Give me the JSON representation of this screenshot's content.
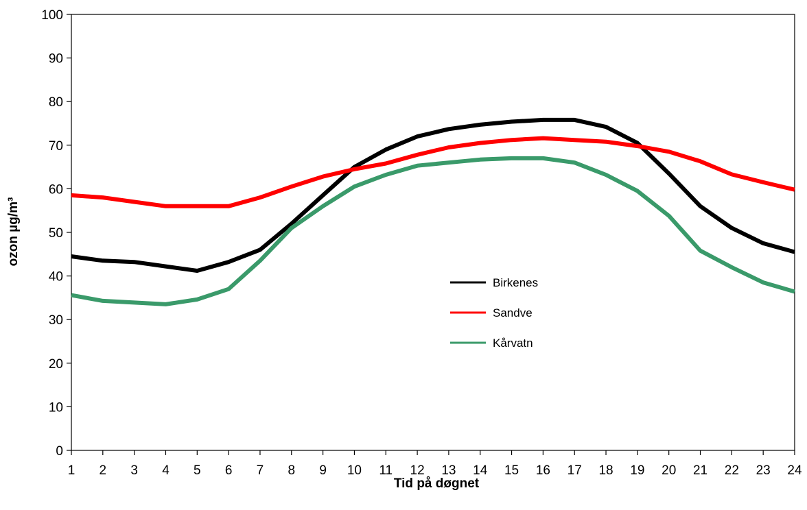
{
  "chart_data": {
    "type": "line",
    "title": "",
    "xlabel": "Tid på døgnet",
    "ylabel": "ozon µg/m³",
    "x": [
      1,
      2,
      3,
      4,
      5,
      6,
      7,
      8,
      9,
      10,
      11,
      12,
      13,
      14,
      15,
      16,
      17,
      18,
      19,
      20,
      21,
      22,
      23,
      24
    ],
    "xlim": [
      1,
      24
    ],
    "ylim": [
      0,
      100
    ],
    "yticks": [
      0,
      10,
      20,
      30,
      40,
      50,
      60,
      70,
      80,
      90,
      100
    ],
    "grid": false,
    "legend_position": "center-right",
    "series": [
      {
        "name": "Birkenes",
        "color": "#000000",
        "values": [
          44.5,
          43.5,
          43.2,
          42.2,
          41.2,
          43.2,
          46.0,
          52.0,
          58.5,
          65.0,
          69.0,
          72.0,
          73.7,
          74.7,
          75.4,
          75.8,
          75.8,
          74.2,
          70.5,
          63.5,
          56.0,
          51.0,
          47.5,
          45.5
        ]
      },
      {
        "name": "Sandve",
        "color": "#ff0000",
        "values": [
          58.5,
          58.0,
          57.0,
          56.0,
          56.0,
          56.0,
          58.0,
          60.5,
          62.8,
          64.5,
          65.8,
          67.8,
          69.5,
          70.5,
          71.2,
          71.6,
          71.2,
          70.8,
          69.8,
          68.5,
          66.3,
          63.3,
          61.5,
          59.8
        ]
      },
      {
        "name": "Kårvatn",
        "color": "#3a9a6a",
        "values": [
          35.6,
          34.3,
          33.9,
          33.5,
          34.6,
          37.0,
          43.5,
          51.0,
          56.0,
          60.5,
          63.2,
          65.3,
          66.0,
          66.7,
          67.0,
          67.0,
          66.0,
          63.2,
          59.5,
          53.8,
          45.8,
          42.0,
          38.5,
          36.4
        ]
      }
    ]
  }
}
